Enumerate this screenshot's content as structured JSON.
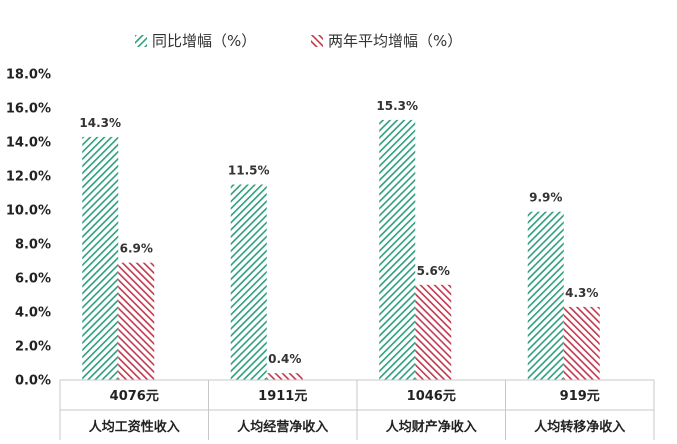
{
  "chart_data": {
    "type": "bar",
    "categories": [
      "人均工资性收入",
      "人均经营净收入",
      "人均财产净收入",
      "人均转移净收入"
    ],
    "category_amounts": [
      "4076元",
      "1911元",
      "1046元",
      "919元"
    ],
    "series": [
      {
        "name": "同比增幅（%）",
        "values": [
          14.3,
          11.5,
          15.3,
          9.9
        ],
        "labels": [
          "14.3%",
          "11.5%",
          "15.3%",
          "9.9%"
        ],
        "color": "#2e9e7e",
        "pattern": "diagonal-hatch"
      },
      {
        "name": "两年平均增幅（%）",
        "values": [
          6.9,
          0.4,
          5.6,
          4.3
        ],
        "labels": [
          "6.9%",
          "0.4%",
          "5.6%",
          "4.3%"
        ],
        "color": "#c0394e",
        "pattern": "diagonal-hatch"
      }
    ],
    "ylim": [
      0,
      18
    ],
    "yticks": [
      "0.0%",
      "2.0%",
      "4.0%",
      "6.0%",
      "8.0%",
      "10.0%",
      "12.0%",
      "14.0%",
      "16.0%",
      "18.0%"
    ],
    "ytick_values": [
      0,
      2,
      4,
      6,
      8,
      10,
      12,
      14,
      16,
      18
    ],
    "grid": false,
    "legend": "top-center",
    "title": "",
    "xlabel": "",
    "ylabel": ""
  }
}
